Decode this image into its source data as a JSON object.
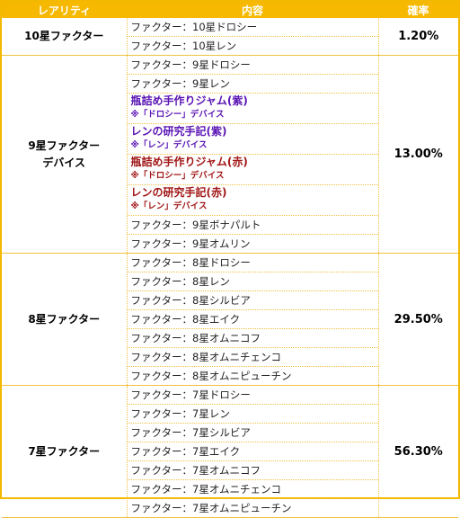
{
  "headers": {
    "rarity": "レアリティ",
    "content": "内容",
    "rate": "確率"
  },
  "groups": [
    {
      "rarity_line1": "10星ファクター",
      "rarity_line2": "",
      "rate": "1.20%",
      "items": [
        {
          "text": "ファクター：10星ドロシー"
        },
        {
          "text": "ファクター：10星レン"
        }
      ]
    },
    {
      "rarity_line1": "9星ファクター",
      "rarity_line2": "デバイス",
      "rate": "13.00%",
      "items": [
        {
          "text": "ファクター：9星ドロシー"
        },
        {
          "text": "ファクター：9星レン"
        },
        {
          "title": "瓶詰め手作りジャム(紫)",
          "sub": "※「ドロシー」デバイス",
          "color": "#5a14b4"
        },
        {
          "title": "レンの研究手記(紫)",
          "sub": "※「レン」デバイス",
          "color": "#5a14b4"
        },
        {
          "title": "瓶詰め手作りジャム(赤)",
          "sub": "※「ドロシー」デバイス",
          "color": "#a11616"
        },
        {
          "title": "レンの研究手記(赤)",
          "sub": "※「レン」デバイス",
          "color": "#a11616"
        },
        {
          "text": "ファクター：9星ボナパルト"
        },
        {
          "text": "ファクター：9星オムリン"
        }
      ]
    },
    {
      "rarity_line1": "8星ファクター",
      "rarity_line2": "",
      "rate": "29.50%",
      "items": [
        {
          "text": "ファクター：8星ドロシー"
        },
        {
          "text": "ファクター：8星レン"
        },
        {
          "text": "ファクター：8星シルビア"
        },
        {
          "text": "ファクター：8星エイク"
        },
        {
          "text": "ファクター：8星オムニコフ"
        },
        {
          "text": "ファクター：8星オムニチェンコ"
        },
        {
          "text": "ファクター：8星オムニピューチン"
        }
      ]
    },
    {
      "rarity_line1": "7星ファクター",
      "rarity_line2": "",
      "rate": "56.30%",
      "items": [
        {
          "text": "ファクター：7星ドロシー"
        },
        {
          "text": "ファクター：7星レン"
        },
        {
          "text": "ファクター：7星シルビア"
        },
        {
          "text": "ファクター：7星エイク"
        },
        {
          "text": "ファクター：7星オムニコフ"
        },
        {
          "text": "ファクター：7星オムニチェンコ"
        },
        {
          "text": "ファクター：7星オムニピューチン"
        }
      ]
    }
  ]
}
